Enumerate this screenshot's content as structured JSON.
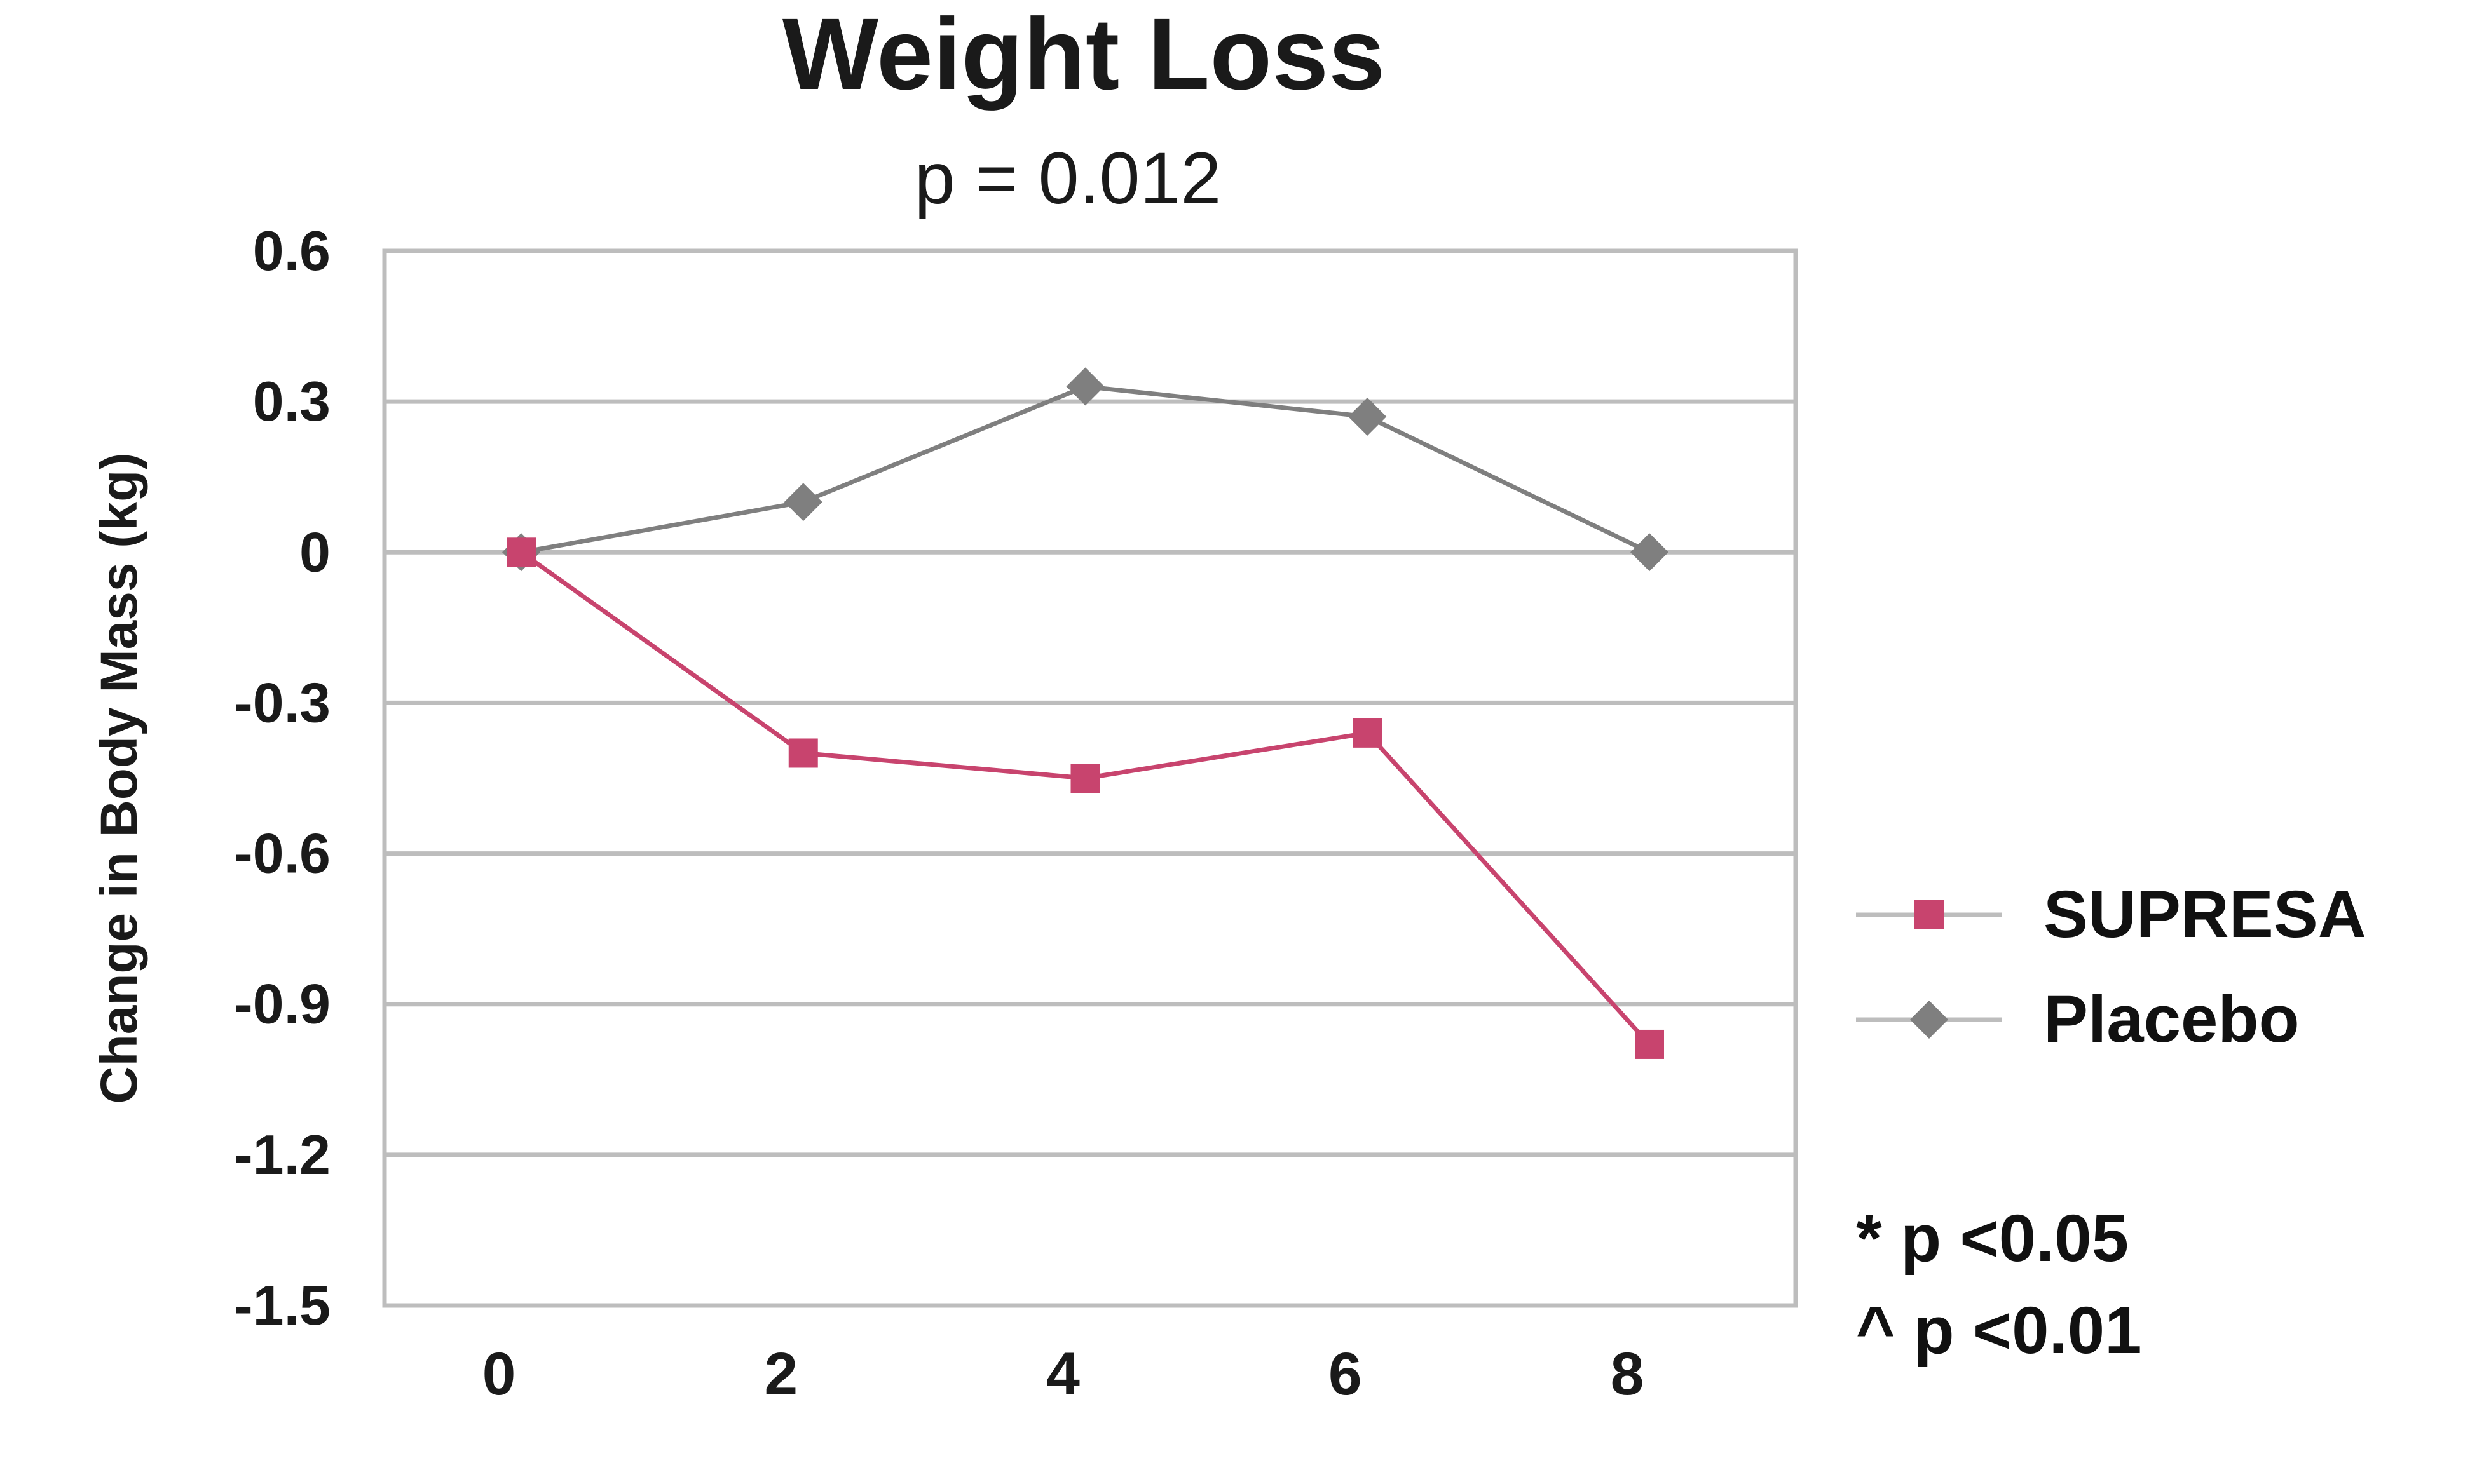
{
  "chart_data": {
    "type": "line",
    "title": "Weight Loss",
    "subtitle": "p = 0.012",
    "xlabel": "",
    "ylabel": "Change in Body Mass (kg)",
    "x_ticks": [
      "0",
      "2",
      "4",
      "6",
      "8"
    ],
    "y_ticks": [
      "0.6",
      "0.3",
      "0",
      "-0.3",
      "-0.6",
      "-0.9",
      "-1.2",
      "-1.5"
    ],
    "ylim": [
      -1.5,
      0.6
    ],
    "xlim": [
      0,
      8
    ],
    "grid": true,
    "legend_position": "right",
    "series": [
      {
        "name": "SUPRESA",
        "marker": "square",
        "color": "#c8446e",
        "points": [
          {
            "x": 0,
            "y": 0
          },
          {
            "x": 2,
            "y": -0.4
          },
          {
            "x": 4,
            "y": -0.45
          },
          {
            "x": 6,
            "y": -0.36
          },
          {
            "x": 8,
            "y": -0.98
          }
        ]
      },
      {
        "name": "Placebo",
        "marker": "diamond",
        "color": "#7f7f7f",
        "points": [
          {
            "x": 0,
            "y": 0
          },
          {
            "x": 2,
            "y": 0.1
          },
          {
            "x": 4,
            "y": 0.33
          },
          {
            "x": 6,
            "y": 0.27
          },
          {
            "x": 8,
            "y": 0
          }
        ]
      }
    ],
    "notes": [
      "* p <0.05",
      "^ p <0.01"
    ]
  }
}
